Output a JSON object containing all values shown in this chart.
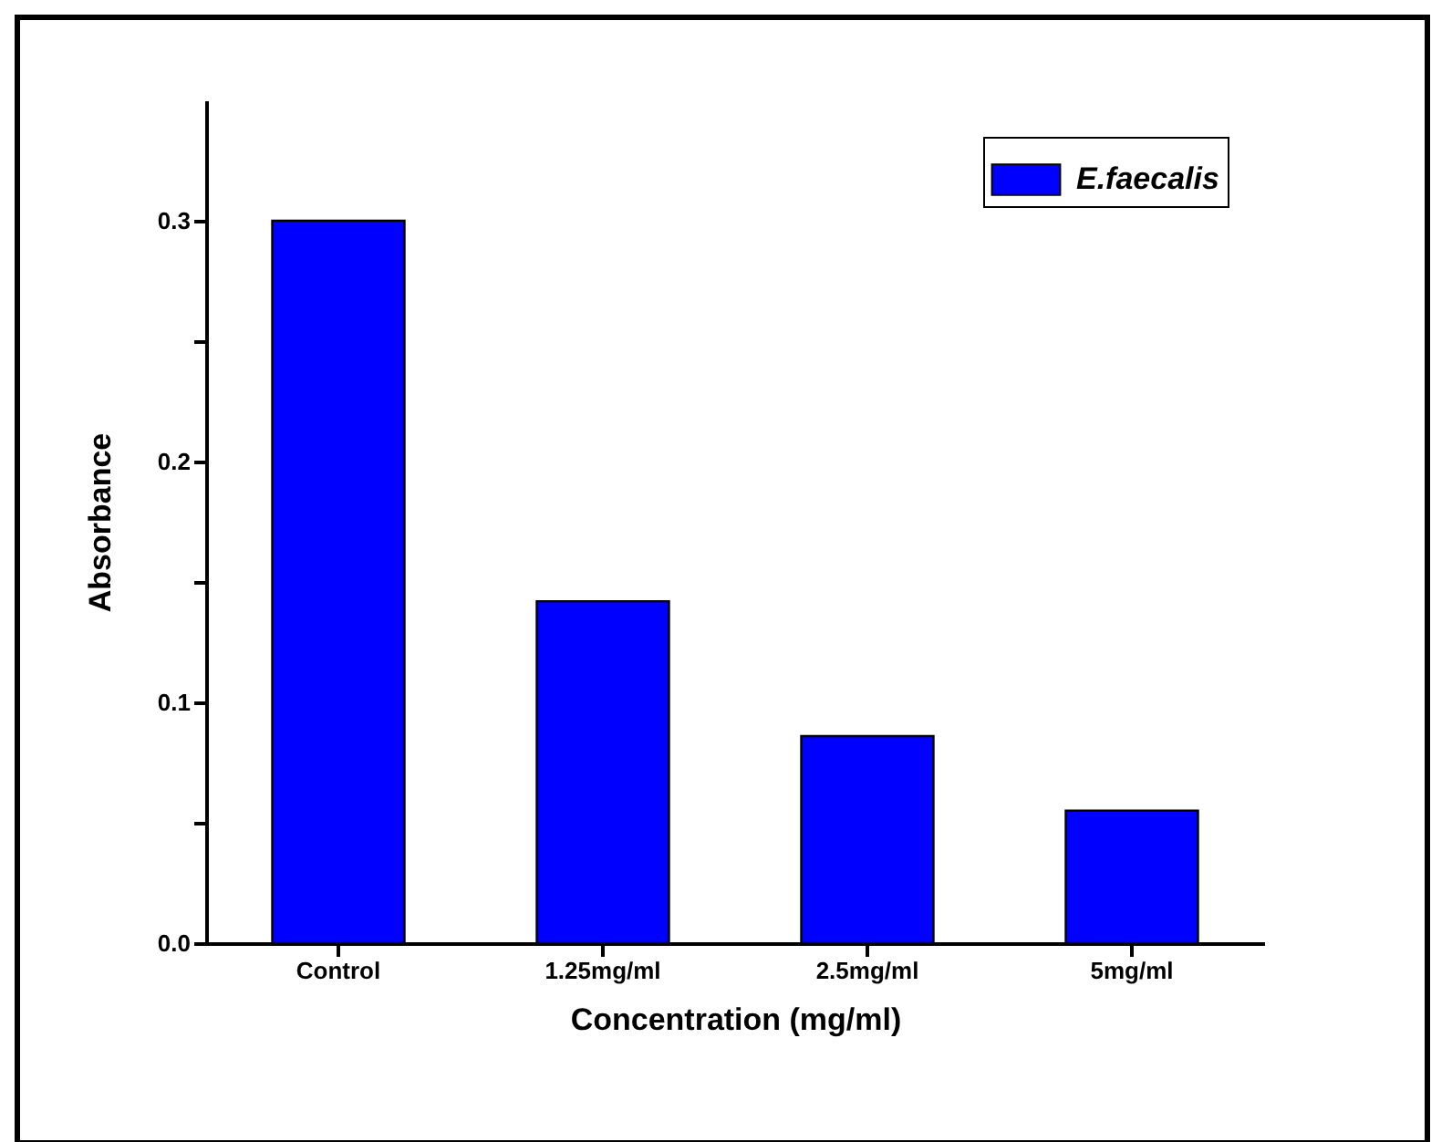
{
  "chart_data": {
    "type": "bar",
    "xlabel": "Concentration (mg/ml)",
    "ylabel": "Absorbance",
    "categories": [
      "Control",
      "1.25mg/ml",
      "2.5mg/ml",
      "5mg/ml"
    ],
    "series": [
      {
        "name": "E.faecalis",
        "color": "#0000ff",
        "values": [
          0.3,
          0.142,
          0.086,
          0.055
        ]
      }
    ],
    "ylim": [
      0,
      0.35
    ],
    "yticks": [
      {
        "value": 0,
        "label": "0.0"
      },
      {
        "value": 0.05,
        "label": null
      },
      0.1,
      {
        "value": 0.15,
        "label": null
      },
      0.2,
      {
        "value": 0.25,
        "label": null
      },
      0.3
    ],
    "grid": false,
    "legend": "top right"
  }
}
